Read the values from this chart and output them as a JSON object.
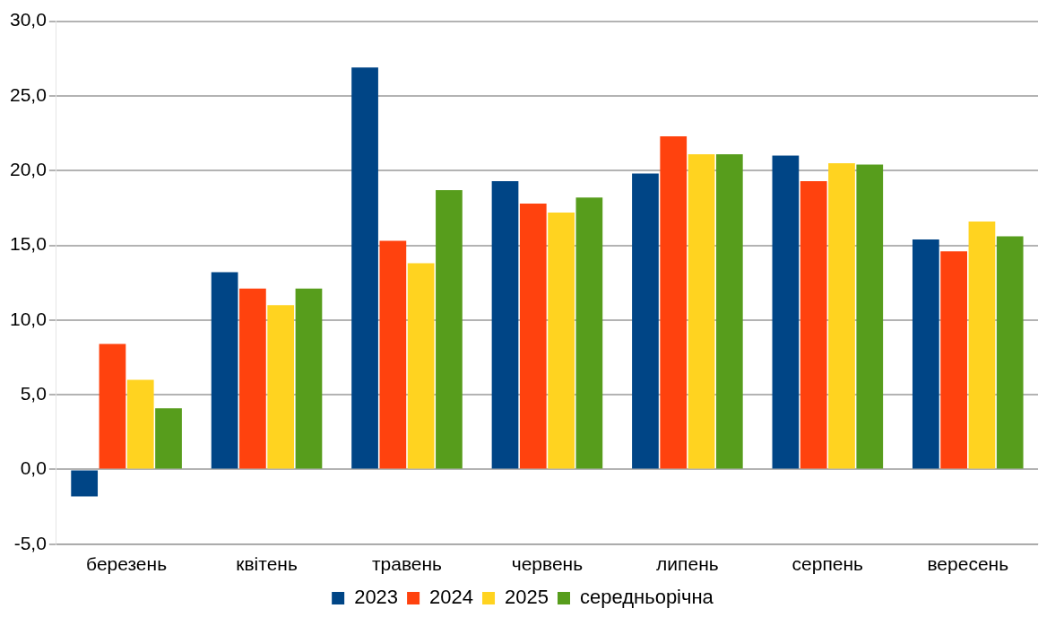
{
  "chart_data": {
    "type": "bar",
    "categories": [
      "березень",
      "квітень",
      "травень",
      "червень",
      "липень",
      "серпень",
      "вересень"
    ],
    "series": [
      {
        "name": "2023",
        "color": "#004586",
        "values": [
          -1.8,
          13.2,
          26.9,
          19.3,
          19.8,
          21.0,
          15.4
        ]
      },
      {
        "name": "2024",
        "color": "#ff420e",
        "values": [
          8.4,
          12.1,
          15.3,
          17.8,
          22.3,
          19.3,
          14.6
        ]
      },
      {
        "name": "2025",
        "color": "#ffd320",
        "values": [
          6.0,
          11.0,
          13.8,
          17.2,
          21.1,
          20.5,
          16.6
        ]
      },
      {
        "name": "середньорічна",
        "color": "#579d1c",
        "values": [
          4.1,
          12.1,
          18.7,
          18.2,
          21.1,
          20.4,
          15.6
        ]
      }
    ],
    "ylim": [
      -5,
      30
    ],
    "yticks": [
      {
        "value": -5,
        "label": "-5,0"
      },
      {
        "value": 0,
        "label": "0,0"
      },
      {
        "value": 5,
        "label": "5,0"
      },
      {
        "value": 10,
        "label": "10,0"
      },
      {
        "value": 15,
        "label": "15,0"
      },
      {
        "value": 20,
        "label": "20,0"
      },
      {
        "value": 25,
        "label": "25,0"
      },
      {
        "value": 30,
        "label": "30,0"
      }
    ],
    "grid": "y",
    "legend": "bottom"
  }
}
